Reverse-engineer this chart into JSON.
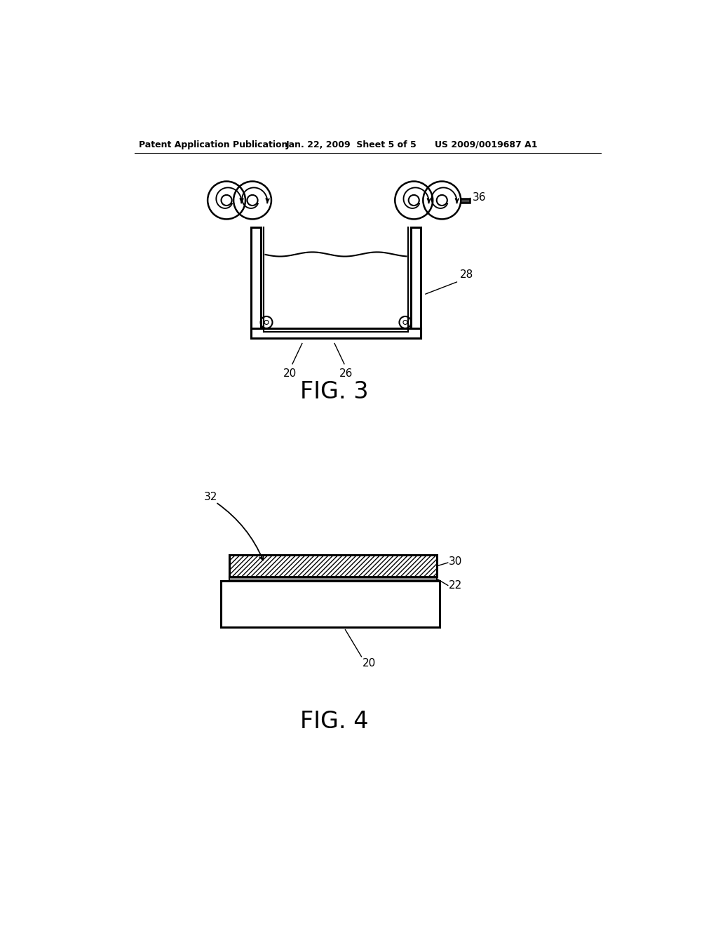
{
  "background_color": "#ffffff",
  "header_left": "Patent Application Publication",
  "header_mid": "Jan. 22, 2009  Sheet 5 of 5",
  "header_right": "US 2009/0019687 A1",
  "fig3_label": "FIG. 3",
  "fig4_label": "FIG. 4"
}
